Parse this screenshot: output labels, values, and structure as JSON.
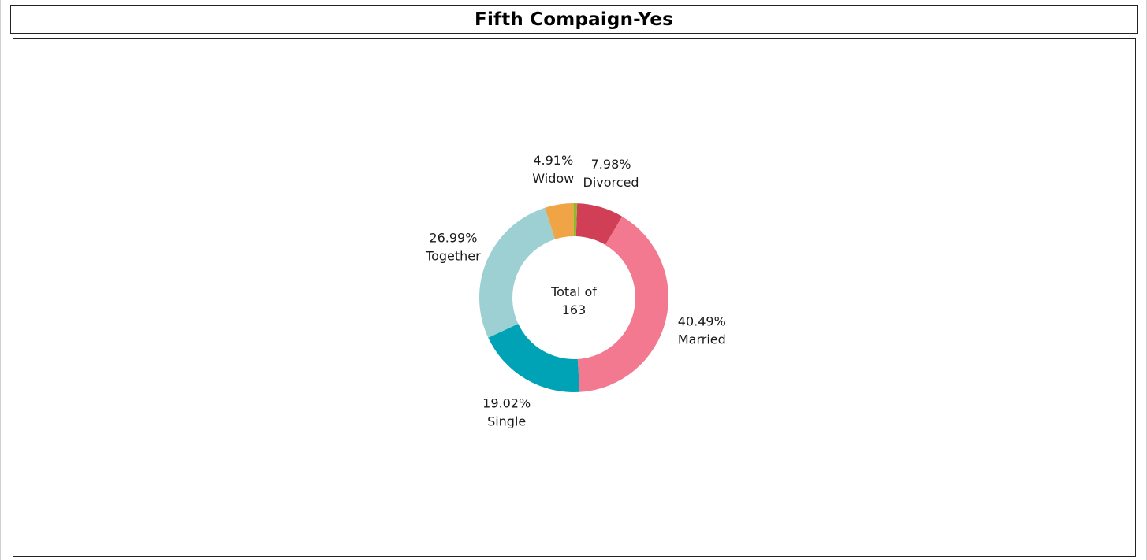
{
  "title": "Fifth Compaign-Yes",
  "chart_data": {
    "type": "pie",
    "donut": true,
    "center_label": [
      "Total of",
      "163"
    ],
    "total": 163,
    "slices": [
      {
        "label": "Divorced",
        "value": 7.98,
        "display": "7.98%",
        "color": "#d13f57"
      },
      {
        "label": "Married",
        "value": 40.49,
        "display": "40.49%",
        "color": "#f2798f"
      },
      {
        "label": "Single",
        "value": 19.02,
        "display": "19.02%",
        "color": "#00a3b5"
      },
      {
        "label": "Together",
        "value": 26.99,
        "display": "26.99%",
        "color": "#9cd0d2"
      },
      {
        "label": "Widow",
        "value": 4.91,
        "display": "4.91%",
        "color": "#f1a446"
      },
      {
        "label": "",
        "value": 0.61,
        "display": "",
        "color": "#8fb92a"
      }
    ]
  }
}
